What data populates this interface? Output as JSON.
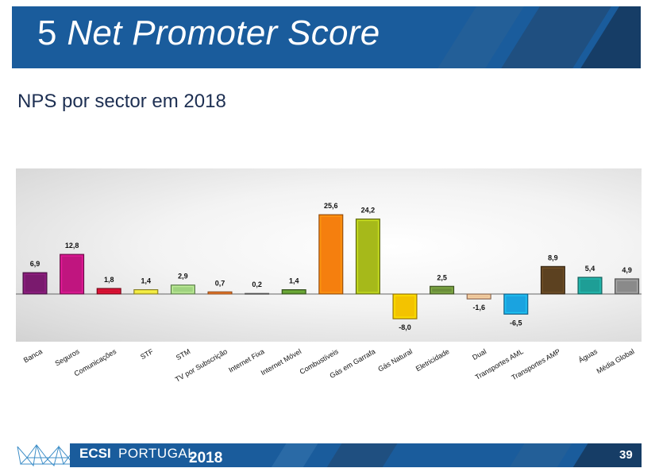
{
  "slide": {
    "title_number": "5",
    "title_text": "Net Promoter Score",
    "subtitle": "NPS por sector em 2018"
  },
  "footer": {
    "brand_bold": "ECSI",
    "brand_light": "PORTUGAL",
    "year": "2018",
    "page_number": "39"
  },
  "colors": {
    "header_blue": "#1a5c9c"
  },
  "chart_data": {
    "type": "bar",
    "title": "",
    "xlabel": "",
    "ylabel": "",
    "categories": [
      "Banca",
      "Seguros",
      "Comunicações",
      "STF",
      "STM",
      "TV por Subscrição",
      "Internet Fixa",
      "Internet Móvel",
      "Combustíveis",
      "Gás em Garrafa",
      "Gás Natural",
      "Eletricidade",
      "Dual",
      "Transportes AML",
      "Transportes AMP",
      "Águas",
      "Média Global"
    ],
    "values": [
      6.9,
      12.8,
      1.8,
      1.4,
      2.9,
      0.7,
      0.2,
      1.4,
      25.6,
      24.2,
      -8.0,
      2.5,
      -1.6,
      -6.5,
      8.9,
      5.4,
      4.9
    ],
    "value_labels": [
      "6,9",
      "12,8",
      "1,8",
      "1,4",
      "2,9",
      "0,7",
      "0,2",
      "1,4",
      "25,6",
      "24,2",
      "-8,0",
      "2,5",
      "-1,6",
      "-6,5",
      "8,9",
      "5,4",
      "4,9"
    ],
    "colors": [
      "#7a1a6e",
      "#c0157f",
      "#c8102e",
      "#e8dc3a",
      "#9fd37f",
      "#f07b2a",
      "#9a9a9a",
      "#5a8e2e",
      "#f57f0e",
      "#a6b91a",
      "#f3c300",
      "#6b8e3a",
      "#e8b48c",
      "#1aa3e0",
      "#5c4120",
      "#1e9e96",
      "#8a8a8a"
    ],
    "ylim": [
      -10,
      28
    ],
    "grid": false,
    "legend": "none"
  }
}
